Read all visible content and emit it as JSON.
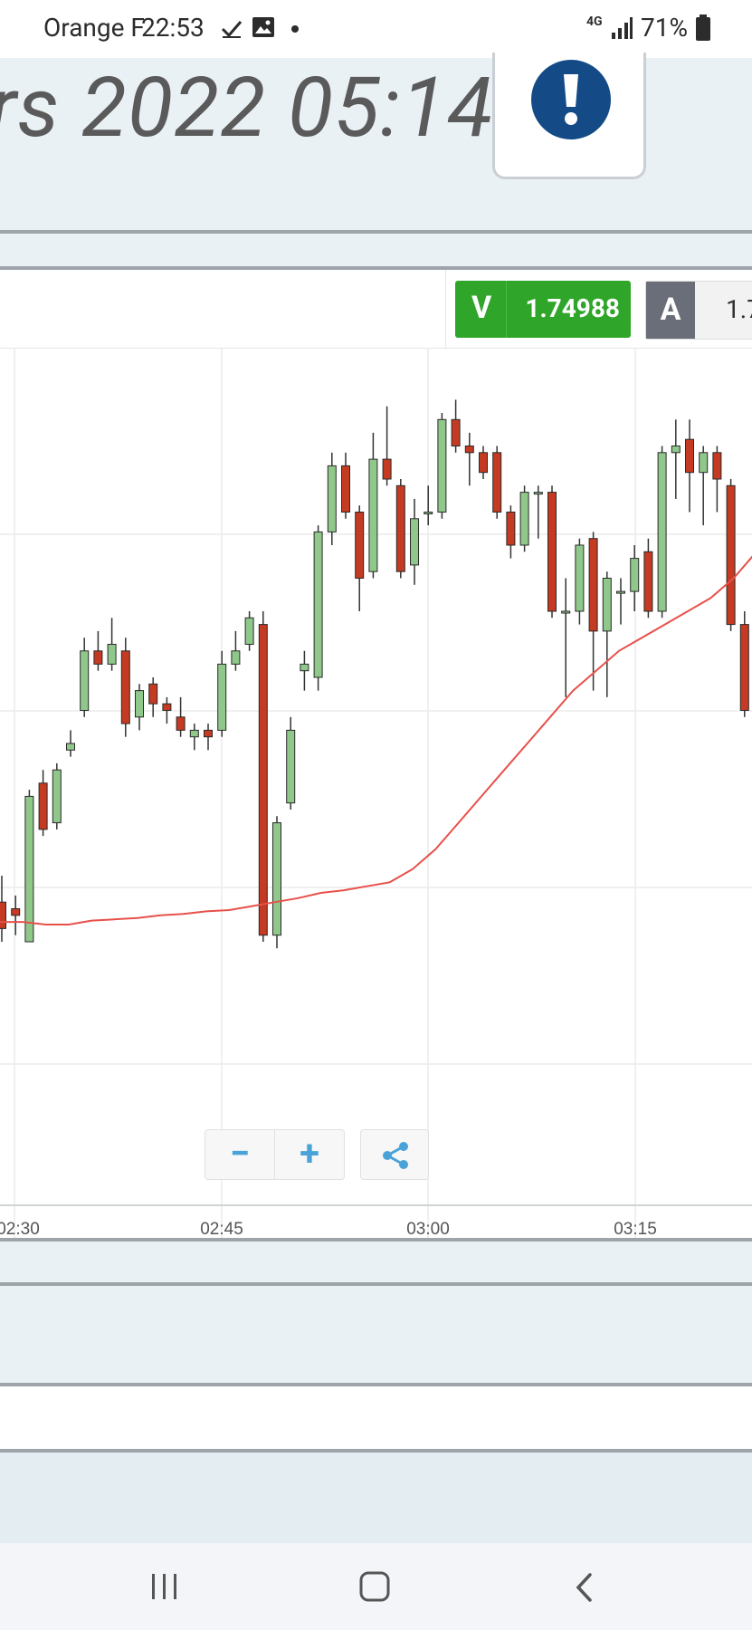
{
  "status_bar": {
    "carrier": "Orange F",
    "time": "22:53",
    "network": "4G",
    "battery": "71%",
    "icons": [
      "check-icon",
      "image-icon",
      "dot-icon",
      "signal-icon",
      "battery-icon"
    ]
  },
  "header": {
    "title": "rs 2022 05:14",
    "alert_icon": "exclamation-icon",
    "alert_color": "#144b87"
  },
  "price": {
    "sell_letter": "V",
    "sell_value": "1.74988",
    "buy_letter": "A",
    "buy_value": "1.7",
    "sell_color": "#2fa629",
    "buy_color": "#6a6e78"
  },
  "chart_controls": {
    "zoom_out": "−",
    "zoom_in": "+",
    "share_icon": "share-icon"
  },
  "chart_data": {
    "type": "candlestick",
    "x_labels": [
      "02:30",
      "02:45",
      "03:00",
      "03:15"
    ],
    "up_color": "#8fc88a",
    "down_color": "#c43a22",
    "ma_color": "#e8504a",
    "candles": [
      {
        "o": 0.3,
        "c": 0.1,
        "h": 0.5,
        "l": 0.0
      },
      {
        "o": 0.25,
        "c": 0.2,
        "h": 0.35,
        "l": 0.05
      },
      {
        "o": 0.0,
        "c": 1.1,
        "h": 1.15,
        "l": 0.0
      },
      {
        "o": 1.2,
        "c": 0.85,
        "h": 1.3,
        "l": 0.8
      },
      {
        "o": 0.9,
        "c": 1.3,
        "h": 1.35,
        "l": 0.85
      },
      {
        "o": 1.45,
        "c": 1.5,
        "h": 1.6,
        "l": 1.4
      },
      {
        "o": 1.75,
        "c": 2.2,
        "h": 2.3,
        "l": 1.7
      },
      {
        "o": 2.2,
        "c": 2.1,
        "h": 2.35,
        "l": 2.05
      },
      {
        "o": 2.1,
        "c": 2.25,
        "h": 2.45,
        "l": 2.05
      },
      {
        "o": 2.2,
        "c": 1.65,
        "h": 2.3,
        "l": 1.55
      },
      {
        "o": 1.7,
        "c": 1.9,
        "h": 1.95,
        "l": 1.6
      },
      {
        "o": 1.95,
        "c": 1.8,
        "h": 2.0,
        "l": 1.7
      },
      {
        "o": 1.8,
        "c": 1.75,
        "h": 1.85,
        "l": 1.65
      },
      {
        "o": 1.7,
        "c": 1.6,
        "h": 1.85,
        "l": 1.55
      },
      {
        "o": 1.55,
        "c": 1.6,
        "h": 1.65,
        "l": 1.45
      },
      {
        "o": 1.6,
        "c": 1.55,
        "h": 1.65,
        "l": 1.45
      },
      {
        "o": 1.6,
        "c": 2.1,
        "h": 2.2,
        "l": 1.55
      },
      {
        "o": 2.1,
        "c": 2.2,
        "h": 2.35,
        "l": 2.05
      },
      {
        "o": 2.25,
        "c": 2.45,
        "h": 2.5,
        "l": 2.2
      },
      {
        "o": 2.4,
        "c": 0.05,
        "h": 2.5,
        "l": 0.0
      },
      {
        "o": 0.05,
        "c": 0.9,
        "h": 0.95,
        "l": -0.05
      },
      {
        "o": 1.05,
        "c": 1.6,
        "h": 1.7,
        "l": 1.0
      },
      {
        "o": 2.05,
        "c": 2.1,
        "h": 2.2,
        "l": 1.9
      },
      {
        "o": 2.0,
        "c": 3.1,
        "h": 3.15,
        "l": 1.9
      },
      {
        "o": 3.1,
        "c": 3.6,
        "h": 3.7,
        "l": 3.0
      },
      {
        "o": 3.6,
        "c": 3.25,
        "h": 3.7,
        "l": 3.2
      },
      {
        "o": 3.25,
        "c": 2.75,
        "h": 3.3,
        "l": 2.5
      },
      {
        "o": 2.8,
        "c": 3.65,
        "h": 3.85,
        "l": 2.75
      },
      {
        "o": 3.65,
        "c": 3.5,
        "h": 4.05,
        "l": 3.45
      },
      {
        "o": 3.45,
        "c": 2.8,
        "h": 3.5,
        "l": 2.75
      },
      {
        "o": 2.85,
        "c": 3.2,
        "h": 3.35,
        "l": 2.7
      },
      {
        "o": 3.25,
        "c": 3.25,
        "h": 3.45,
        "l": 3.15
      },
      {
        "o": 3.25,
        "c": 3.95,
        "h": 4.0,
        "l": 3.2
      },
      {
        "o": 3.95,
        "c": 3.75,
        "h": 4.1,
        "l": 3.7
      },
      {
        "o": 3.75,
        "c": 3.7,
        "h": 3.85,
        "l": 3.45
      },
      {
        "o": 3.7,
        "c": 3.55,
        "h": 3.75,
        "l": 3.5
      },
      {
        "o": 3.7,
        "c": 3.25,
        "h": 3.75,
        "l": 3.2
      },
      {
        "o": 3.25,
        "c": 3.0,
        "h": 3.3,
        "l": 2.9
      },
      {
        "o": 3.0,
        "c": 3.4,
        "h": 3.45,
        "l": 2.95
      },
      {
        "o": 3.4,
        "c": 3.4,
        "h": 3.45,
        "l": 3.05
      },
      {
        "o": 3.4,
        "c": 2.5,
        "h": 3.45,
        "l": 2.45
      },
      {
        "o": 2.5,
        "c": 2.5,
        "h": 2.75,
        "l": 1.85
      },
      {
        "o": 2.5,
        "c": 3.0,
        "h": 3.05,
        "l": 2.4
      },
      {
        "o": 3.05,
        "c": 2.35,
        "h": 3.1,
        "l": 1.9
      },
      {
        "o": 2.35,
        "c": 2.75,
        "h": 2.8,
        "l": 1.85
      },
      {
        "o": 2.65,
        "c": 2.65,
        "h": 2.75,
        "l": 2.4
      },
      {
        "o": 2.65,
        "c": 2.9,
        "h": 3.0,
        "l": 2.5
      },
      {
        "o": 2.95,
        "c": 2.5,
        "h": 3.05,
        "l": 2.45
      },
      {
        "o": 2.5,
        "c": 3.7,
        "h": 3.75,
        "l": 2.45
      },
      {
        "o": 3.7,
        "c": 3.75,
        "h": 3.95,
        "l": 3.35
      },
      {
        "o": 3.8,
        "c": 3.55,
        "h": 3.95,
        "l": 3.25
      },
      {
        "o": 3.55,
        "c": 3.7,
        "h": 3.75,
        "l": 3.15
      },
      {
        "o": 3.7,
        "c": 3.5,
        "h": 3.75,
        "l": 3.25
      },
      {
        "o": 3.45,
        "c": 2.4,
        "h": 3.5,
        "l": 2.35
      },
      {
        "o": 2.4,
        "c": 1.75,
        "h": 2.5,
        "l": 1.7
      }
    ],
    "moving_average": [
      0.15,
      0.15,
      0.13,
      0.13,
      0.16,
      0.17,
      0.18,
      0.2,
      0.21,
      0.23,
      0.24,
      0.27,
      0.3,
      0.33,
      0.37,
      0.39,
      0.42,
      0.45,
      0.55,
      0.7,
      0.9,
      1.1,
      1.3,
      1.5,
      1.7,
      1.9,
      2.05,
      2.2,
      2.3,
      2.4,
      2.5,
      2.6,
      2.75,
      2.95
    ]
  }
}
